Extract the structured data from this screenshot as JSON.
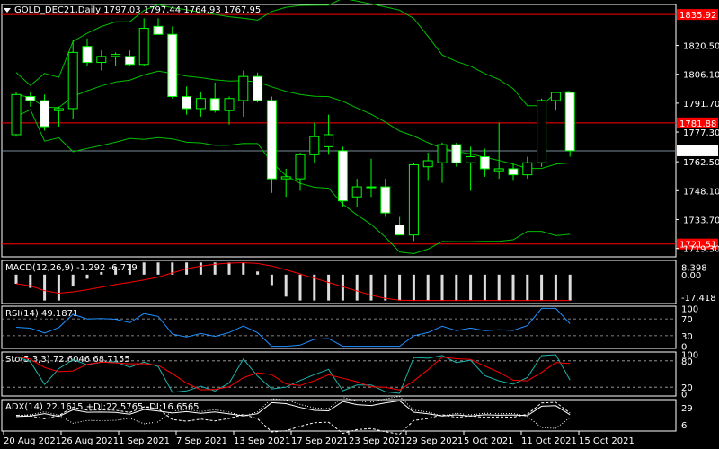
{
  "chart_data": {
    "type": "candlestick",
    "symbol_header": "GOLD_DEC21,Daily  1797.03 1797.44 1764.93 1767.95",
    "price_axis_ticks": [
      "1835.92",
      "1820.50",
      "1806.10",
      "1791.70",
      "1781.88",
      "1777.30",
      "1767.95",
      "1762.50",
      "1748.10",
      "1733.70",
      "1721.51",
      "1719.30"
    ],
    "highlighted_prices": {
      "resistance": "1835.92",
      "mid_level": "1781.88",
      "current": "1767.95",
      "support": "1721.51"
    },
    "date_ticks": [
      "20 Aug 2021",
      "26 Aug 2021",
      "1 Sep 2021",
      "7 Sep 2021",
      "13 Sep 2021",
      "17 Sep 2021",
      "23 Sep 2021",
      "29 Sep 2021",
      "5 Oct 2021",
      "11 Oct 2021",
      "15 Oct 2021"
    ],
    "ylim": [
      1716,
      1840
    ],
    "candles": [
      {
        "o": 1776,
        "h": 1797,
        "l": 1775,
        "c": 1796
      },
      {
        "o": 1795,
        "h": 1797,
        "l": 1790,
        "c": 1793
      },
      {
        "o": 1793,
        "h": 1796,
        "l": 1778,
        "c": 1780
      },
      {
        "o": 1788,
        "h": 1790,
        "l": 1780,
        "c": 1789
      },
      {
        "o": 1789,
        "h": 1823,
        "l": 1784,
        "c": 1817
      },
      {
        "o": 1820,
        "h": 1824,
        "l": 1810,
        "c": 1812
      },
      {
        "o": 1812,
        "h": 1818,
        "l": 1808,
        "c": 1815
      },
      {
        "o": 1815,
        "h": 1817,
        "l": 1810,
        "c": 1816
      },
      {
        "o": 1815,
        "h": 1818,
        "l": 1810,
        "c": 1811
      },
      {
        "o": 1811,
        "h": 1834,
        "l": 1810,
        "c": 1829
      },
      {
        "o": 1830,
        "h": 1834,
        "l": 1826,
        "c": 1826
      },
      {
        "o": 1826,
        "h": 1830,
        "l": 1794,
        "c": 1795
      },
      {
        "o": 1795,
        "h": 1800,
        "l": 1786,
        "c": 1789
      },
      {
        "o": 1789,
        "h": 1797,
        "l": 1785,
        "c": 1794
      },
      {
        "o": 1794,
        "h": 1802,
        "l": 1787,
        "c": 1788
      },
      {
        "o": 1788,
        "h": 1795,
        "l": 1781,
        "c": 1794
      },
      {
        "o": 1793,
        "h": 1808,
        "l": 1785,
        "c": 1805
      },
      {
        "o": 1805,
        "h": 1807,
        "l": 1792,
        "c": 1793
      },
      {
        "o": 1793,
        "h": 1795,
        "l": 1747,
        "c": 1754
      },
      {
        "o": 1754,
        "h": 1759,
        "l": 1745,
        "c": 1755
      },
      {
        "o": 1754,
        "h": 1767,
        "l": 1748,
        "c": 1766
      },
      {
        "o": 1766,
        "h": 1782,
        "l": 1762,
        "c": 1775
      },
      {
        "o": 1770,
        "h": 1786,
        "l": 1766,
        "c": 1776
      },
      {
        "o": 1768,
        "h": 1770,
        "l": 1740,
        "c": 1743
      },
      {
        "o": 1745,
        "h": 1754,
        "l": 1740,
        "c": 1750
      },
      {
        "o": 1750,
        "h": 1764,
        "l": 1745,
        "c": 1750
      },
      {
        "o": 1750,
        "h": 1754,
        "l": 1735,
        "c": 1737
      },
      {
        "o": 1731,
        "h": 1735,
        "l": 1726,
        "c": 1726
      },
      {
        "o": 1726,
        "h": 1762,
        "l": 1723,
        "c": 1761
      },
      {
        "o": 1760,
        "h": 1767,
        "l": 1753,
        "c": 1763
      },
      {
        "o": 1762,
        "h": 1772,
        "l": 1752,
        "c": 1771
      },
      {
        "o": 1771,
        "h": 1772,
        "l": 1760,
        "c": 1762
      },
      {
        "o": 1762,
        "h": 1770,
        "l": 1748,
        "c": 1765
      },
      {
        "o": 1765,
        "h": 1769,
        "l": 1755,
        "c": 1759
      },
      {
        "o": 1758,
        "h": 1782,
        "l": 1754,
        "c": 1759
      },
      {
        "o": 1759,
        "h": 1762,
        "l": 1753,
        "c": 1756
      },
      {
        "o": 1756,
        "h": 1765,
        "l": 1754,
        "c": 1762
      },
      {
        "o": 1762,
        "h": 1794,
        "l": 1760,
        "c": 1793
      },
      {
        "o": 1793,
        "h": 1797,
        "l": 1788,
        "c": 1797
      },
      {
        "o": 1797,
        "h": 1797,
        "l": 1765,
        "c": 1768
      }
    ],
    "indicators": {
      "macd": {
        "label": "MACD(12,26,9) -1.292 -6.779",
        "ticks": [
          "8.398",
          "0.00",
          "-17.418"
        ]
      },
      "rsi": {
        "label": "RSI(14) 49.1871",
        "ticks": [
          "100",
          "70",
          "30",
          "0"
        ]
      },
      "stochastic": {
        "label": "Sto(5,3,3) 72.6046 68.7155",
        "ticks": [
          "100",
          "80",
          "20",
          "0"
        ]
      },
      "adx": {
        "label": "ADX(14) 22.1615 +DI:22.5765 -DI:16.6565",
        "ticks": [
          "29",
          "6"
        ]
      }
    }
  },
  "colors": {
    "background": "#000000",
    "grid": "#ffffff",
    "bull_candle": "#000000",
    "bear_candle": "#ffffff",
    "wick": "#00ff00",
    "bollinger": "#00c000",
    "level_line": "#ff0000",
    "current_line": "#778899",
    "rsi_line": "#1e90ff",
    "sto_main": "#20b2aa",
    "sto_signal": "#ff0000",
    "macd_signal": "#ff0000"
  }
}
